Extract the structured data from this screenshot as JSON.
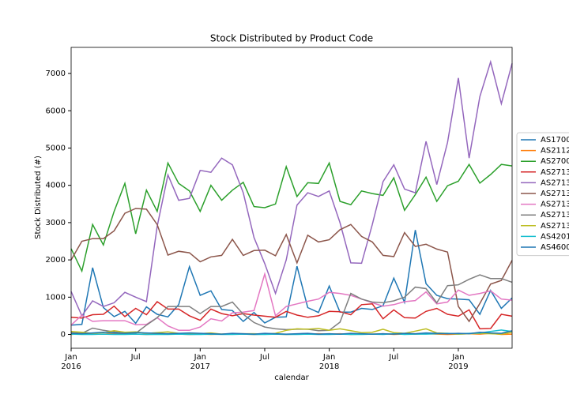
{
  "chart_data": {
    "type": "line",
    "title": "Stock Distributed by Product Code",
    "x_label": "calendar",
    "y_label": "Stock Distributed (#)",
    "x": [
      "2016-01",
      "2016-02",
      "2016-03",
      "2016-04",
      "2016-05",
      "2016-06",
      "2016-07",
      "2016-08",
      "2016-09",
      "2016-10",
      "2016-11",
      "2016-12",
      "2017-01",
      "2017-02",
      "2017-03",
      "2017-04",
      "2017-05",
      "2017-06",
      "2017-07",
      "2017-08",
      "2017-09",
      "2017-10",
      "2017-11",
      "2017-12",
      "2018-01",
      "2018-02",
      "2018-03",
      "2018-04",
      "2018-05",
      "2018-06",
      "2018-07",
      "2018-08",
      "2018-09",
      "2018-10",
      "2018-11",
      "2018-12",
      "2019-01",
      "2019-02",
      "2019-03",
      "2019-04",
      "2019-05",
      "2019-06"
    ],
    "xticks": [
      {
        "value": "2016-01",
        "label": "Jan 2016"
      },
      {
        "value": "2016-07",
        "label": "Jul"
      },
      {
        "value": "2017-01",
        "label": "Jan 2017"
      },
      {
        "value": "2017-07",
        "label": "Jul"
      },
      {
        "value": "2018-01",
        "label": "Jan 2018"
      },
      {
        "value": "2018-07",
        "label": "Jul"
      },
      {
        "value": "2019-01",
        "label": "Jan 2019"
      }
    ],
    "ylim": [
      -370,
      7700
    ],
    "yticks": [
      0,
      1000,
      2000,
      3000,
      4000,
      5000,
      6000,
      7000
    ],
    "series": [
      {
        "name": "AS1700",
        "color": "#1f77b4",
        "values": [
          250,
          270,
          1790,
          720,
          480,
          620,
          300,
          740,
          540,
          470,
          800,
          1820,
          1050,
          1170,
          670,
          640,
          350,
          590,
          310,
          460,
          470,
          1830,
          720,
          590,
          1300,
          600,
          600,
          700,
          670,
          770,
          1510,
          860,
          2800,
          1360,
          1050,
          960,
          950,
          930,
          540,
          1180,
          700,
          980
        ]
      },
      {
        "name": "AS2112",
        "color": "#ff7f0e",
        "values": [
          0,
          20,
          10,
          10,
          30,
          20,
          10,
          0,
          10,
          20,
          10,
          0,
          10,
          0,
          10,
          20,
          10,
          0,
          10,
          10,
          0,
          10,
          10,
          20,
          10,
          20,
          0,
          10,
          10,
          20,
          0,
          10,
          10,
          20,
          10,
          0,
          10,
          20,
          10,
          30,
          0,
          10
        ]
      },
      {
        "name": "AS2700",
        "color": "#2ca02c",
        "values": [
          2300,
          1700,
          2950,
          2400,
          3300,
          4050,
          2700,
          3870,
          3300,
          4600,
          4050,
          3850,
          3300,
          4000,
          3600,
          3870,
          4080,
          3430,
          3400,
          3500,
          4500,
          3700,
          4070,
          4050,
          4600,
          3570,
          3480,
          3850,
          3780,
          3730,
          4200,
          3330,
          3750,
          4220,
          3570,
          3990,
          4110,
          4560,
          4060,
          4290,
          4560,
          4520
        ]
      },
      {
        "name": "AS2713",
        "color": "#d62728",
        "values": [
          460,
          440,
          530,
          540,
          760,
          480,
          700,
          530,
          880,
          680,
          680,
          500,
          380,
          680,
          560,
          500,
          560,
          520,
          490,
          460,
          620,
          520,
          460,
          500,
          620,
          610,
          530,
          800,
          820,
          420,
          660,
          450,
          440,
          620,
          700,
          540,
          490,
          660,
          150,
          160,
          540,
          490
        ]
      },
      {
        "name": "AS2713",
        "color": "#9467bd",
        "values": [
          1150,
          500,
          900,
          750,
          850,
          1130,
          1000,
          880,
          2900,
          4280,
          3600,
          3650,
          4400,
          4350,
          4730,
          4550,
          3800,
          2600,
          1900,
          1100,
          2000,
          3470,
          3800,
          3700,
          3850,
          3000,
          1920,
          1910,
          2950,
          4100,
          4550,
          3900,
          3800,
          5180,
          4020,
          5150,
          6880,
          4730,
          6380,
          7310,
          6190,
          7270
        ]
      },
      {
        "name": "AS2713",
        "color": "#8c564b",
        "values": [
          2000,
          2500,
          2570,
          2570,
          2780,
          3250,
          3380,
          3360,
          2950,
          2130,
          2230,
          2190,
          1950,
          2080,
          2120,
          2550,
          2120,
          2250,
          2260,
          2110,
          2680,
          1920,
          2660,
          2480,
          2540,
          2810,
          2950,
          2630,
          2480,
          2120,
          2090,
          2730,
          2360,
          2420,
          2290,
          2210,
          750,
          350,
          830,
          1350,
          1450,
          1990
        ]
      },
      {
        "name": "AS2713",
        "color": "#e377c2",
        "values": [
          250,
          520,
          350,
          370,
          370,
          370,
          260,
          270,
          450,
          230,
          110,
          110,
          200,
          420,
          360,
          580,
          600,
          640,
          1620,
          500,
          750,
          820,
          890,
          950,
          1130,
          1100,
          1050,
          950,
          850,
          760,
          800,
          880,
          910,
          1140,
          820,
          870,
          1190,
          1050,
          1100,
          1170,
          950,
          920
        ]
      },
      {
        "name": "AS2713",
        "color": "#7f7f7f",
        "values": [
          50,
          30,
          170,
          110,
          70,
          30,
          30,
          250,
          450,
          750,
          750,
          750,
          560,
          750,
          750,
          870,
          540,
          320,
          200,
          150,
          130,
          140,
          140,
          100,
          110,
          330,
          1100,
          950,
          870,
          850,
          900,
          1000,
          1270,
          1230,
          850,
          1310,
          1330,
          1480,
          1600,
          1500,
          1500,
          1400
        ]
      },
      {
        "name": "AS2713",
        "color": "#bcbd22",
        "values": [
          80,
          60,
          30,
          50,
          100,
          60,
          70,
          30,
          50,
          70,
          30,
          20,
          20,
          40,
          10,
          20,
          20,
          20,
          10,
          30,
          110,
          150,
          140,
          160,
          110,
          150,
          100,
          50,
          60,
          140,
          50,
          30,
          90,
          150,
          40,
          30,
          10,
          20,
          30,
          20,
          10,
          60
        ]
      },
      {
        "name": "AS4201",
        "color": "#17becf",
        "values": [
          10,
          0,
          0,
          10,
          0,
          0,
          10,
          0,
          0,
          0,
          10,
          0,
          0,
          10,
          0,
          0,
          10,
          0,
          0,
          10,
          0,
          0,
          10,
          0,
          0,
          10,
          0,
          0,
          10,
          0,
          20,
          0,
          10,
          10,
          20,
          30,
          20,
          30,
          40,
          80,
          120,
          80
        ]
      },
      {
        "name": "AS4600",
        "color": "#1f77b4",
        "values": [
          30,
          20,
          40,
          60,
          40,
          30,
          50,
          40,
          30,
          20,
          30,
          40,
          30,
          20,
          10,
          30,
          20,
          10,
          30,
          20,
          10,
          20,
          30,
          10,
          20,
          10,
          30,
          20,
          10,
          20,
          10,
          30,
          20,
          40,
          30,
          20,
          30,
          20,
          60,
          40,
          30,
          100
        ]
      }
    ]
  }
}
